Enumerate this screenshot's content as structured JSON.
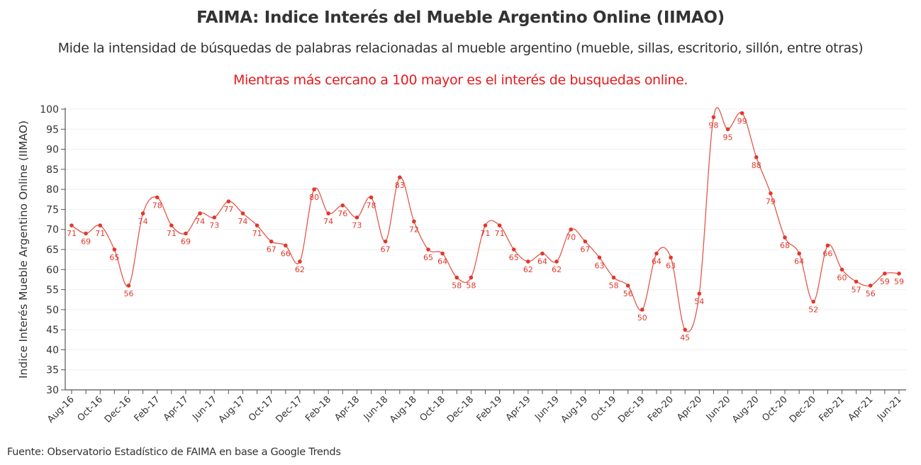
{
  "header": {
    "title": "FAIMA: Indice Interés del Mueble Argentino Online (IIMAO)",
    "subtitle": "Mide la intensidad de búsquedas de palabras relacionadas al mueble argentino (mueble, sillas, escritorio, sillón, entre otras)",
    "note": "Mientras más cercano a 100 mayor es el interés de busquedas online.",
    "note_color": "#e8191c"
  },
  "footer": {
    "source": "Fuente: Observatorio Estadístico de FAIMA en base a Google Trends"
  },
  "chart_data": {
    "type": "line",
    "title": "FAIMA: Indice Interés del Mueble Argentino Online (IIMAO)",
    "xlabel": "",
    "ylabel": "Indice Interés Mueble Argentino Online (IIMAO)",
    "ylim": [
      30,
      100
    ],
    "yticks": [
      30,
      35,
      40,
      45,
      50,
      55,
      60,
      65,
      70,
      75,
      80,
      85,
      90,
      95,
      100
    ],
    "grid": true,
    "line_color": "#e0392b",
    "x": [
      "Aug-16",
      "Sep-16",
      "Oct-16",
      "Nov-16",
      "Dec-16",
      "Jan-17",
      "Feb-17",
      "Mar-17",
      "Apr-17",
      "May-17",
      "Jun-17",
      "Jul-17",
      "Aug-17",
      "Sep-17",
      "Oct-17",
      "Nov-17",
      "Dec-17",
      "Jan-18",
      "Feb-18",
      "Mar-18",
      "Apr-18",
      "May-18",
      "Jun-18",
      "Jul-18",
      "Aug-18",
      "Sep-18",
      "Oct-18",
      "Nov-18",
      "Dec-18",
      "Jan-19",
      "Feb-19",
      "Mar-19",
      "Apr-19",
      "May-19",
      "Jun-19",
      "Jul-19",
      "Aug-19",
      "Sep-19",
      "Oct-19",
      "Nov-19",
      "Dec-19",
      "Jan-20",
      "Feb-20",
      "Mar-20",
      "Apr-20",
      "May-20",
      "Jun-20",
      "Jul-20",
      "Aug-20",
      "Sep-20",
      "Oct-20",
      "Nov-20",
      "Dec-20",
      "Jan-21",
      "Feb-21",
      "Mar-21",
      "Apr-21",
      "May-21",
      "Jun-21"
    ],
    "xtick_labels": [
      "Aug-16",
      "Oct-16",
      "Dec-16",
      "Feb-17",
      "Apr-17",
      "Jun-17",
      "Aug-17",
      "Oct-17",
      "Dec-17",
      "Feb-18",
      "Apr-18",
      "Jun-18",
      "Aug-18",
      "Oct-18",
      "Dec-18",
      "Feb-19",
      "Apr-19",
      "Jun-19",
      "Aug-19",
      "Oct-19",
      "Dec-19",
      "Feb-20",
      "Apr-20",
      "Jun-20",
      "Aug-20",
      "Oct-20",
      "Dec-20",
      "Feb-21",
      "Apr-21",
      "Jun-21"
    ],
    "series": [
      {
        "name": "IIMAO",
        "values": [
          71,
          69,
          71,
          65,
          56,
          74,
          78,
          71,
          69,
          74,
          73,
          77,
          74,
          71,
          67,
          66,
          62,
          80,
          74,
          76,
          73,
          78,
          67,
          83,
          72,
          65,
          64,
          58,
          58,
          71,
          71,
          65,
          62,
          64,
          62,
          70,
          67,
          63,
          58,
          56,
          50,
          64,
          63,
          45,
          54,
          98,
          95,
          99,
          88,
          79,
          68,
          64,
          52,
          66,
          60,
          57,
          56,
          59,
          59
        ]
      }
    ]
  }
}
